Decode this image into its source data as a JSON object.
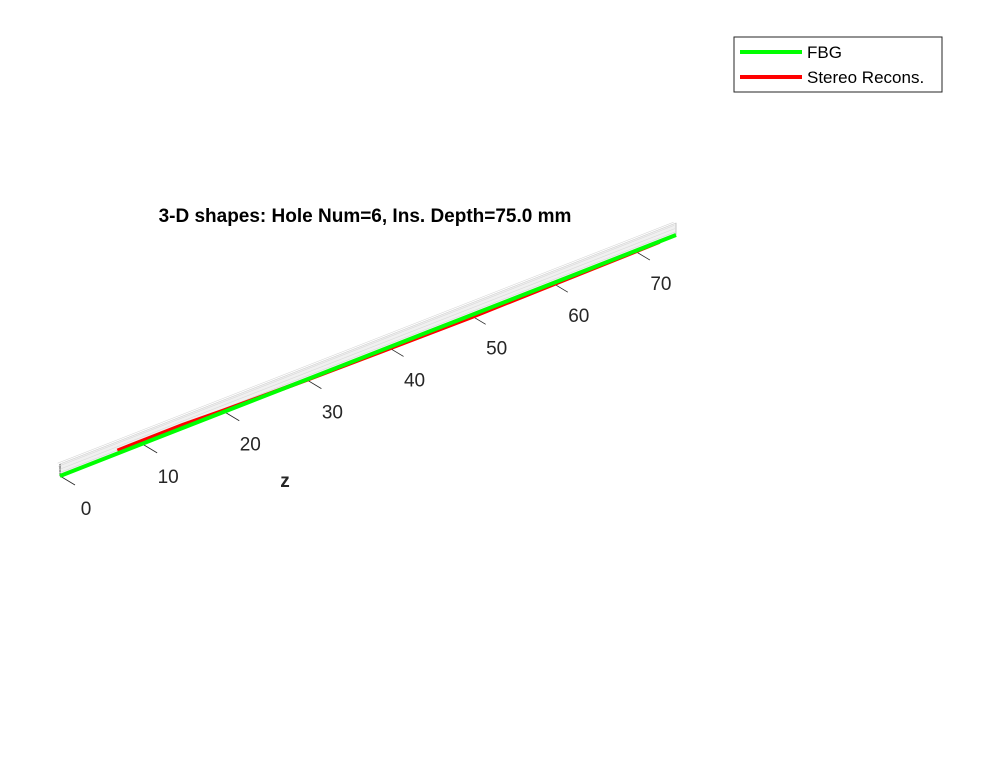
{
  "chart_data": {
    "type": "line",
    "title": "3-D shapes: Hole Num=6, Ins. Depth=75.0 mm",
    "zlabel": "z",
    "zlim": [
      0,
      75
    ],
    "z_ticks": [
      "0",
      "10",
      "20",
      "30",
      "40",
      "50",
      "60",
      "70"
    ],
    "grid": true,
    "legend_location": "top-right",
    "series": [
      {
        "name": "FBG",
        "color": "#00ff00",
        "z": [
          0,
          15,
          30,
          45,
          60,
          75
        ],
        "offset": [
          0,
          0,
          0,
          0,
          0,
          0
        ]
      },
      {
        "name": "Stereo Recons.",
        "color": "#ff0000",
        "z": [
          7,
          10,
          15,
          20,
          30,
          40,
          50,
          60,
          70,
          73
        ],
        "offset": [
          0.8,
          0.85,
          0.85,
          0.4,
          -0.1,
          -0.4,
          -0.6,
          -0.4,
          -0.2,
          -0.1
        ]
      }
    ]
  }
}
